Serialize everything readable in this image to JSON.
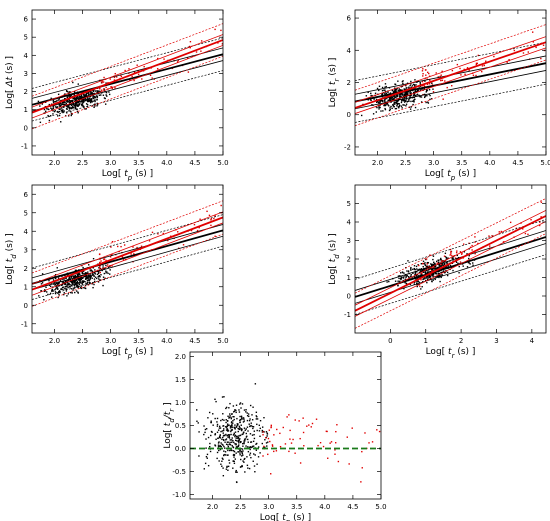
{
  "chart_data": [
    {
      "type": "scatter",
      "id": "tp-dt",
      "xlabel_pre": "Log[ ",
      "xlabel_sym": "t",
      "xlabel_sub": "p",
      "xlabel_post": " (s) ]",
      "ylabel_pre": "Log[ ",
      "ylabel_sym": "Δt",
      "ylabel_sub": "",
      "ylabel_post": " (s) ]",
      "xlim": [
        1.6,
        5.0
      ],
      "ylim": [
        -1.5,
        6.5
      ],
      "xticks": [
        "2.0",
        "2.5",
        "3.0",
        "3.5",
        "4.0",
        "4.5",
        "5.0"
      ],
      "xtick_values": [
        2.0,
        2.5,
        3.0,
        3.5,
        4.0,
        4.5,
        5.0
      ],
      "yticks": [
        "-1",
        "0",
        "1",
        "2",
        "3",
        "4",
        "5",
        "6"
      ],
      "ytick_values": [
        -1,
        0,
        1,
        2,
        3,
        4,
        5,
        6
      ],
      "cloud": {
        "x_center": 2.38,
        "x_sd": 0.26,
        "slope": 0.78,
        "intercept": -0.38,
        "scatter": 0.28,
        "n": 450,
        "x_min": 1.7,
        "x_max": 3.0
      },
      "red_points": {
        "x_min": 2.8,
        "x_max": 5.0,
        "slope": 1.1,
        "intercept": -0.75,
        "scatter": 0.35,
        "n": 70
      },
      "black_fit": {
        "slope": 0.82,
        "intercept": -0.04,
        "band_outer": 0.9,
        "band_inner": 0.35
      },
      "red_fit": {
        "slope": 1.18,
        "intercept": -1.05,
        "band_outer": 0.9,
        "band_inner": 0.3
      }
    },
    {
      "type": "scatter",
      "id": "tp-tr",
      "xlabel_pre": "Log[ ",
      "xlabel_sym": "t",
      "xlabel_sub": "p",
      "xlabel_post": " (s) ]",
      "ylabel_pre": "Log[ ",
      "ylabel_sym": "t",
      "ylabel_sub": "r",
      "ylabel_post": " (s) ]",
      "xlim": [
        1.6,
        5.0
      ],
      "ylim": [
        -2.5,
        6.5
      ],
      "xticks": [
        "2.0",
        "2.5",
        "3.0",
        "3.5",
        "4.0",
        "4.5",
        "5.0"
      ],
      "xtick_values": [
        2.0,
        2.5,
        3.0,
        3.5,
        4.0,
        4.5,
        5.0
      ],
      "yticks": [
        "-2",
        "0",
        "2",
        "4",
        "6"
      ],
      "ytick_values": [
        -2,
        0,
        2,
        4,
        6
      ],
      "cloud": {
        "x_center": 2.38,
        "x_sd": 0.26,
        "slope": 0.7,
        "intercept": -0.55,
        "scatter": 0.35,
        "n": 450,
        "x_min": 1.7,
        "x_max": 3.0
      },
      "red_points": {
        "x_min": 2.8,
        "x_max": 5.0,
        "slope": 1.05,
        "intercept": -0.95,
        "scatter": 0.45,
        "n": 70
      },
      "black_fit": {
        "slope": 0.7,
        "intercept": -0.3,
        "band_outer": 1.3,
        "band_inner": 0.45
      },
      "red_fit": {
        "slope": 1.2,
        "intercept": -1.5,
        "band_outer": 1.1,
        "band_inner": 0.35
      }
    },
    {
      "type": "scatter",
      "id": "tp-td",
      "xlabel_pre": "Log[ ",
      "xlabel_sym": "t",
      "xlabel_sub": "p",
      "xlabel_post": " (s) ]",
      "ylabel_pre": "Log[ ",
      "ylabel_sym": "t",
      "ylabel_sub": "d",
      "ylabel_post": " (s) ]",
      "xlim": [
        1.6,
        5.0
      ],
      "ylim": [
        -1.5,
        6.5
      ],
      "xticks": [
        "2.0",
        "2.5",
        "3.0",
        "3.5",
        "4.0",
        "4.5",
        "5.0"
      ],
      "xtick_values": [
        2.0,
        2.5,
        3.0,
        3.5,
        4.0,
        4.5,
        5.0
      ],
      "yticks": [
        "-1",
        "0",
        "1",
        "2",
        "3",
        "4",
        "5",
        "6"
      ],
      "ytick_values": [
        -1,
        0,
        1,
        2,
        3,
        4,
        5,
        6
      ],
      "cloud": {
        "x_center": 2.38,
        "x_sd": 0.26,
        "slope": 0.8,
        "intercept": -0.55,
        "scatter": 0.28,
        "n": 450,
        "x_min": 1.7,
        "x_max": 3.0
      },
      "red_points": {
        "x_min": 2.8,
        "x_max": 5.0,
        "slope": 1.1,
        "intercept": -0.85,
        "scatter": 0.35,
        "n": 70
      },
      "black_fit": {
        "slope": 0.85,
        "intercept": -0.2,
        "band_outer": 0.85,
        "band_inner": 0.32
      },
      "red_fit": {
        "slope": 1.15,
        "intercept": -1.0,
        "band_outer": 0.9,
        "band_inner": 0.3
      }
    },
    {
      "type": "scatter",
      "id": "tr-td",
      "xlabel_pre": "Log[ ",
      "xlabel_sym": "t",
      "xlabel_sub": "r",
      "xlabel_post": " (s) ]",
      "ylabel_pre": "Log[ ",
      "ylabel_sym": "t",
      "ylabel_sub": "d",
      "ylabel_post": " (s) ]",
      "xlim": [
        -1.0,
        4.4
      ],
      "ylim": [
        -2.0,
        6.0
      ],
      "xticks": [
        "0",
        "1",
        "2",
        "3",
        "4"
      ],
      "xtick_values": [
        0,
        1,
        2,
        3,
        4
      ],
      "yticks": [
        "-1",
        "0",
        "1",
        "2",
        "3",
        "4",
        "5"
      ],
      "ytick_values": [
        -1,
        0,
        1,
        2,
        3,
        4,
        5
      ],
      "cloud": {
        "x_center": 1.1,
        "x_sd": 0.45,
        "slope": 0.55,
        "intercept": 0.75,
        "scatter": 0.28,
        "n": 450,
        "x_min": -0.4,
        "x_max": 2.4
      },
      "red_points": {
        "x_min": 0.8,
        "x_max": 4.4,
        "slope": 0.8,
        "intercept": 0.7,
        "scatter": 0.35,
        "n": 70
      },
      "black_fit": {
        "slope": 0.6,
        "intercept": 0.55,
        "band_outer": 0.95,
        "band_inner": 0.35
      },
      "red_fit": {
        "slope": 0.95,
        "intercept": 0.15,
        "band_outer": 0.95,
        "band_inner": 0.3
      }
    },
    {
      "type": "scatter",
      "id": "tp-ratio",
      "xlabel_pre": "Log[ ",
      "xlabel_sym": "t",
      "xlabel_sub": "p",
      "xlabel_post": " (s) ]",
      "ylabel_pre": "Log[ ",
      "ylabel_sym": "t",
      "ylabel_sub": "d",
      "ylabel_post": "/t",
      "ylabel_sub2": "r",
      "ylabel_end": " ]",
      "xlim": [
        1.6,
        5.0
      ],
      "ylim": [
        -1.1,
        2.1
      ],
      "xticks": [
        "2.0",
        "2.5",
        "3.0",
        "3.5",
        "4.0",
        "4.5",
        "5.0"
      ],
      "xtick_values": [
        2.0,
        2.5,
        3.0,
        3.5,
        4.0,
        4.5,
        5.0
      ],
      "yticks": [
        "-1.0",
        "-0.5",
        "0.0",
        "0.5",
        "1.0",
        "1.5",
        "2.0"
      ],
      "ytick_values": [
        -1.0,
        -0.5,
        0.0,
        0.5,
        1.0,
        1.5,
        2.0
      ],
      "cloud": {
        "x_center": 2.4,
        "x_sd": 0.26,
        "slope": 0.0,
        "intercept": 0.25,
        "scatter": 0.35,
        "n": 450,
        "x_min": 1.7,
        "x_max": 3.0
      },
      "red_points": {
        "x_min": 2.9,
        "x_max": 5.0,
        "slope": 0.0,
        "intercept": 0.2,
        "scatter": 0.3,
        "n": 70
      },
      "zero_line": 0.0,
      "colors": {
        "zero_line": "#1a7a1a"
      }
    }
  ],
  "colors": {
    "black_points": "#000000",
    "red_points": "#e00000",
    "black_fit": "#000000",
    "red_fit": "#e00000"
  }
}
